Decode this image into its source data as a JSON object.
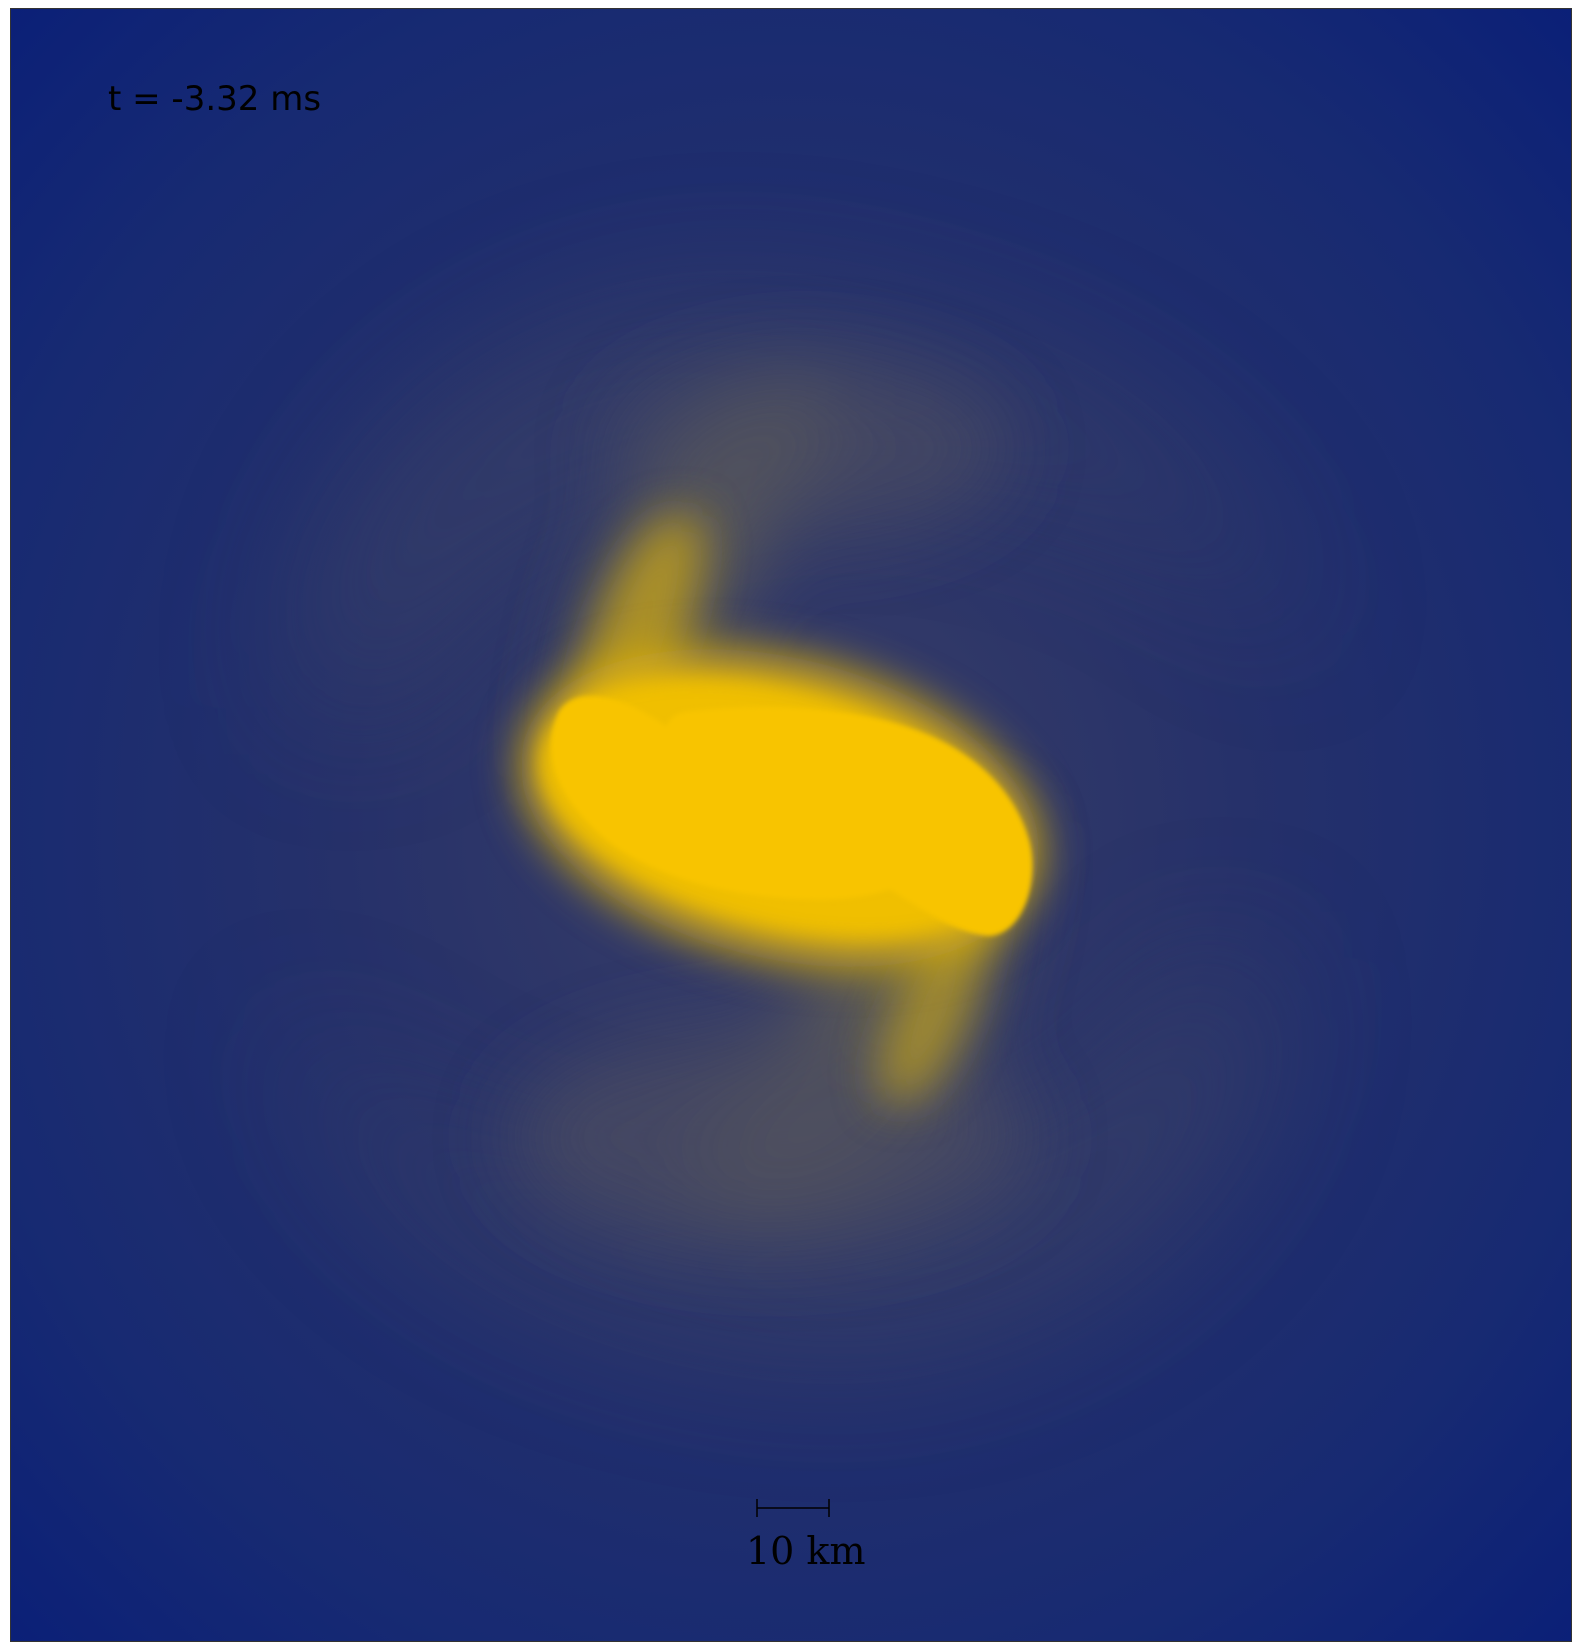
{
  "time_label": "t = -3.32 ms",
  "scale_bar": {
    "label": "10 km"
  },
  "colors": {
    "background_blue": "#0d2275",
    "mid_blue": "#2a3468",
    "haze_gray": "#5a5a60",
    "core_yellow": "#f8c400",
    "text": "#000000"
  }
}
